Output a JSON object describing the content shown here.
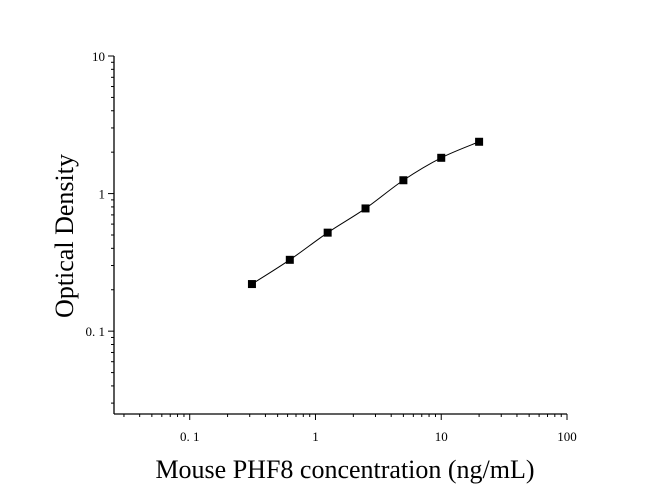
{
  "chart_data": {
    "type": "scatter",
    "title": "",
    "xlabel": "Mouse PHF8 concentration (ng/mL)",
    "ylabel": "Optical Density",
    "x_scale": "log",
    "y_scale": "log",
    "xlim": [
      0.025,
      100
    ],
    "ylim": [
      0.025,
      10
    ],
    "x_ticks": [
      0.1,
      1,
      10,
      100
    ],
    "x_tick_labels": [
      "0. 1",
      "1",
      "10",
      "100"
    ],
    "y_ticks": [
      0.1,
      1,
      10
    ],
    "y_tick_labels": [
      "0. 1",
      "1",
      "10"
    ],
    "grid": false,
    "legend": "none",
    "series": [
      {
        "marker": "square",
        "fit_line": true,
        "x": [
          0.3125,
          0.625,
          1.25,
          2.5,
          5,
          10,
          20
        ],
        "y": [
          0.22,
          0.33,
          0.52,
          0.78,
          1.25,
          1.82,
          2.38
        ]
      }
    ],
    "colors": {
      "marker": "#000000",
      "line": "#000000",
      "axis": "#000000"
    }
  }
}
